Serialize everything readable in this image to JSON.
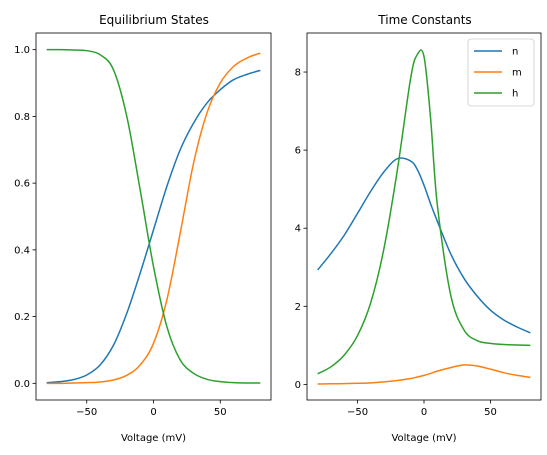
{
  "chart_data": [
    {
      "type": "line",
      "title": "Equilibrium States",
      "xlabel": "Voltage (mV)",
      "ylabel": "",
      "xlim": [
        -88,
        88
      ],
      "ylim": [
        -0.05,
        1.05
      ],
      "xticks": [
        -50,
        0,
        50
      ],
      "xtick_labels": [
        "−50",
        "0",
        "50"
      ],
      "yticks": [
        0.0,
        0.2,
        0.4,
        0.6,
        0.8,
        1.0
      ],
      "ytick_labels": [
        "0.0",
        "0.2",
        "0.4",
        "0.6",
        "0.8",
        "1.0"
      ],
      "grid": false,
      "legend": "none",
      "x": [
        -80,
        -70,
        -60,
        -50,
        -40,
        -30,
        -20,
        -10,
        0,
        10,
        20,
        30,
        40,
        50,
        60,
        70,
        80
      ],
      "series": [
        {
          "color": "#1f77b4",
          "values": [
            0.002,
            0.005,
            0.011,
            0.025,
            0.055,
            0.114,
            0.21,
            0.33,
            0.46,
            0.59,
            0.7,
            0.78,
            0.84,
            0.88,
            0.91,
            0.926,
            0.938
          ]
        },
        {
          "color": "#ff7f0e",
          "values": [
            0.0,
            0.0,
            0.001,
            0.002,
            0.004,
            0.01,
            0.024,
            0.055,
            0.12,
            0.25,
            0.45,
            0.66,
            0.81,
            0.9,
            0.95,
            0.975,
            0.99
          ]
        },
        {
          "color": "#2ca02c",
          "values": [
            1.0,
            1.0,
            0.999,
            0.997,
            0.985,
            0.94,
            0.8,
            0.58,
            0.35,
            0.17,
            0.07,
            0.03,
            0.012,
            0.005,
            0.002,
            0.001,
            0.001
          ]
        }
      ]
    },
    {
      "type": "line",
      "title": "Time Constants",
      "xlabel": "Voltage (mV)",
      "ylabel": "",
      "xlim": [
        -88,
        88
      ],
      "ylim": [
        -0.4,
        9.0
      ],
      "xticks": [
        -50,
        0,
        50
      ],
      "xtick_labels": [
        "−50",
        "0",
        "50"
      ],
      "yticks": [
        0,
        2,
        4,
        6,
        8
      ],
      "ytick_labels": [
        "0",
        "2",
        "4",
        "6",
        "8"
      ],
      "grid": false,
      "legend": "top-right",
      "x": [
        -80,
        -70,
        -60,
        -50,
        -40,
        -30,
        -20,
        -10,
        -5,
        0,
        5,
        10,
        20,
        30,
        40,
        50,
        60,
        70,
        80
      ],
      "series": [
        {
          "name": "n",
          "color": "#1f77b4",
          "values": [
            2.93,
            3.35,
            3.82,
            4.38,
            4.95,
            5.45,
            5.78,
            5.72,
            5.5,
            5.1,
            4.62,
            4.18,
            3.35,
            2.72,
            2.26,
            1.9,
            1.65,
            1.47,
            1.32
          ]
        },
        {
          "name": "m",
          "color": "#ff7f0e",
          "values": [
            0.01,
            0.015,
            0.02,
            0.028,
            0.04,
            0.065,
            0.1,
            0.15,
            0.19,
            0.23,
            0.28,
            0.34,
            0.43,
            0.5,
            0.47,
            0.39,
            0.3,
            0.23,
            0.18
          ]
        },
        {
          "name": "h",
          "color": "#2ca02c",
          "values": [
            0.27,
            0.45,
            0.75,
            1.25,
            2.1,
            3.5,
            5.5,
            7.85,
            8.45,
            8.4,
            6.8,
            4.6,
            2.3,
            1.4,
            1.12,
            1.05,
            1.02,
            1.01,
            1.0
          ]
        }
      ]
    }
  ]
}
